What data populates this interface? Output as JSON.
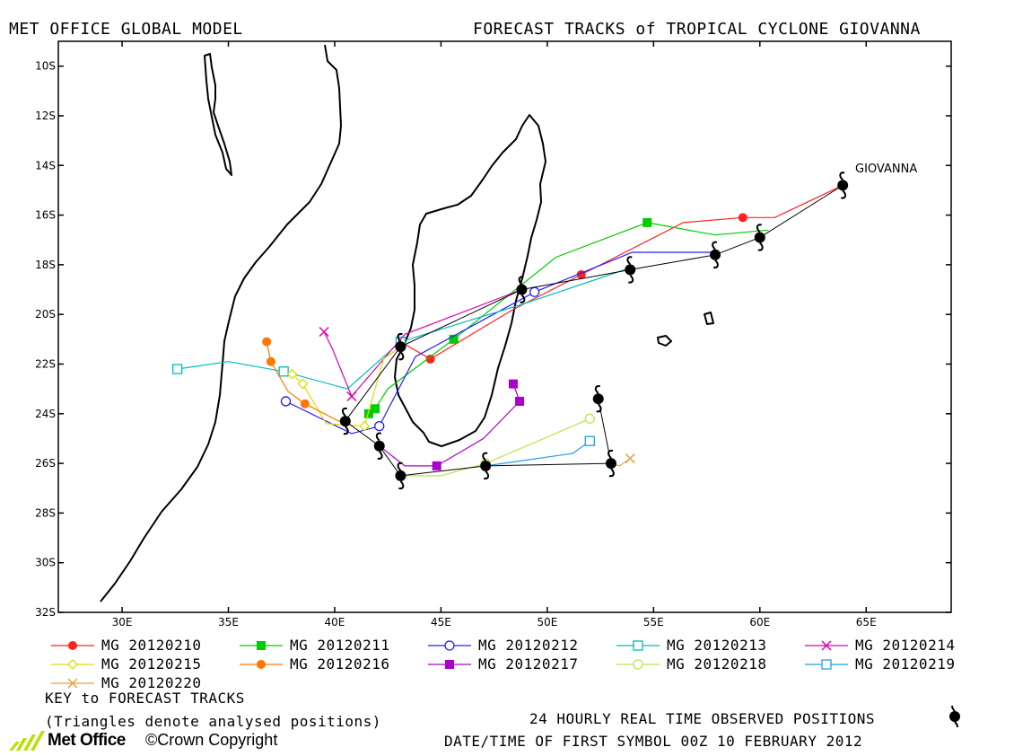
{
  "header": {
    "left_title": "MET OFFICE GLOBAL MODEL",
    "right_title": "FORECAST TRACKS of TROPICAL CYCLONE GIOVANNA"
  },
  "map": {
    "lon_range": [
      27,
      69
    ],
    "lat_range": [
      -32,
      -9
    ],
    "lon_ticks": [
      "30E",
      "35E",
      "40E",
      "45E",
      "50E",
      "55E",
      "60E",
      "65E"
    ],
    "lat_ticks": [
      "10S",
      "12S",
      "14S",
      "16S",
      "18S",
      "20S",
      "22S",
      "24S",
      "26S",
      "28S",
      "30S",
      "32S"
    ],
    "storm_label": "GIOVANNA",
    "coast_color": "#000000"
  },
  "observed_positions": [
    {
      "lon": 63.9,
      "lat": -14.8
    },
    {
      "lon": 60.0,
      "lat": -16.9
    },
    {
      "lon": 57.9,
      "lat": -17.6
    },
    {
      "lon": 53.9,
      "lat": -18.2
    },
    {
      "lon": 48.8,
      "lat": -19.0
    },
    {
      "lon": 43.1,
      "lat": -21.3
    },
    {
      "lon": 40.5,
      "lat": -24.3
    },
    {
      "lon": 42.1,
      "lat": -25.3
    },
    {
      "lon": 43.1,
      "lat": -26.5
    },
    {
      "lon": 47.1,
      "lat": -26.1
    },
    {
      "lon": 53.0,
      "lat": -26.0
    },
    {
      "lon": 52.4,
      "lat": -23.4
    }
  ],
  "tracks": [
    {
      "label": "MG 20120210",
      "color": "#ff2020",
      "marker": "filled-circle",
      "points": [
        [
          63.9,
          -14.8
        ],
        [
          60.7,
          -16.1
        ],
        [
          59.2,
          -16.1
        ],
        [
          56.4,
          -16.3
        ],
        [
          51.6,
          -18.4
        ],
        [
          48.4,
          -19.8
        ],
        [
          44.5,
          -21.8
        ],
        [
          43.1,
          -21.1
        ]
      ]
    },
    {
      "label": "MG 20120211",
      "color": "#00cc00",
      "marker": "filled-square",
      "points": [
        [
          60.4,
          -16.6
        ],
        [
          57.9,
          -16.8
        ],
        [
          54.7,
          -16.3
        ],
        [
          50.4,
          -17.7
        ],
        [
          45.6,
          -21.0
        ],
        [
          42.5,
          -23.0
        ],
        [
          41.9,
          -23.8
        ],
        [
          41.6,
          -24.0
        ]
      ]
    },
    {
      "label": "MG 20120212",
      "color": "#2020ff",
      "marker": "open-circle",
      "points": [
        [
          58.0,
          -17.5
        ],
        [
          54.0,
          -17.5
        ],
        [
          49.4,
          -19.1
        ],
        [
          43.8,
          -21.7
        ],
        [
          42.1,
          -24.5
        ],
        [
          40.8,
          -24.8
        ],
        [
          37.7,
          -23.5
        ]
      ]
    },
    {
      "label": "MG 20120213",
      "color": "#00bbbb",
      "marker": "open-square",
      "points": [
        [
          54.0,
          -18.1
        ],
        [
          48.8,
          -19.6
        ],
        [
          43.1,
          -21.1
        ],
        [
          40.6,
          -23.0
        ],
        [
          37.6,
          -22.3
        ],
        [
          35.0,
          -21.9
        ],
        [
          32.6,
          -22.2
        ]
      ]
    },
    {
      "label": "MG 20120214",
      "color": "#dd00aa",
      "marker": "x",
      "points": [
        [
          48.8,
          -19.0
        ],
        [
          43.3,
          -20.8
        ],
        [
          40.8,
          -23.3
        ],
        [
          39.9,
          -21.4
        ],
        [
          39.5,
          -20.7
        ]
      ]
    },
    {
      "label": "MG 20120215",
      "color": "#dddd00",
      "marker": "open-diamond",
      "points": [
        [
          43.1,
          -21.3
        ],
        [
          42.3,
          -21.8
        ],
        [
          41.4,
          -24.5
        ],
        [
          39.6,
          -24.4
        ],
        [
          38.5,
          -22.8
        ],
        [
          38.0,
          -22.4
        ]
      ]
    },
    {
      "label": "MG 20120216",
      "color": "#ff7700",
      "marker": "filled-circle",
      "points": [
        [
          40.5,
          -24.3
        ],
        [
          40.2,
          -24.3
        ],
        [
          38.6,
          -23.6
        ],
        [
          37.8,
          -23.1
        ],
        [
          37.0,
          -21.9
        ],
        [
          36.8,
          -21.1
        ]
      ]
    },
    {
      "label": "MG 20120217",
      "color": "#aa00cc",
      "marker": "filled-square",
      "points": [
        [
          42.1,
          -25.3
        ],
        [
          43.3,
          -26.1
        ],
        [
          44.8,
          -26.1
        ],
        [
          47.0,
          -25.0
        ],
        [
          48.7,
          -23.5
        ],
        [
          48.4,
          -22.8
        ]
      ]
    },
    {
      "label": "MG 20120218",
      "color": "#b8e64c",
      "marker": "open-circle",
      "points": [
        [
          43.1,
          -26.5
        ],
        [
          45.0,
          -26.5
        ],
        [
          47.1,
          -26.0
        ],
        [
          51.2,
          -24.5
        ],
        [
          52.0,
          -24.2
        ]
      ]
    },
    {
      "label": "MG 20120219",
      "color": "#1fa0e6",
      "marker": "open-square",
      "points": [
        [
          47.1,
          -26.1
        ],
        [
          51.2,
          -25.6
        ],
        [
          52.0,
          -25.1
        ]
      ]
    },
    {
      "label": "MG 20120220",
      "color": "#e6a040",
      "marker": "x",
      "points": [
        [
          53.0,
          -26.0
        ],
        [
          53.4,
          -26.1
        ],
        [
          53.9,
          -25.8
        ]
      ]
    }
  ],
  "legend": {
    "key_title": "KEY to FORECAST TRACKS",
    "key_note": "(Triangles denote analysed positions)",
    "observed_label": "24 HOURLY REAL TIME OBSERVED POSITIONS",
    "date_line": "DATE/TIME OF FIRST SYMBOL 00Z 10 FEBRUARY 2012"
  },
  "footer": {
    "logo_text": "Met Office",
    "copyright": "©Crown Copyright",
    "logo_color": "#b8e000"
  }
}
